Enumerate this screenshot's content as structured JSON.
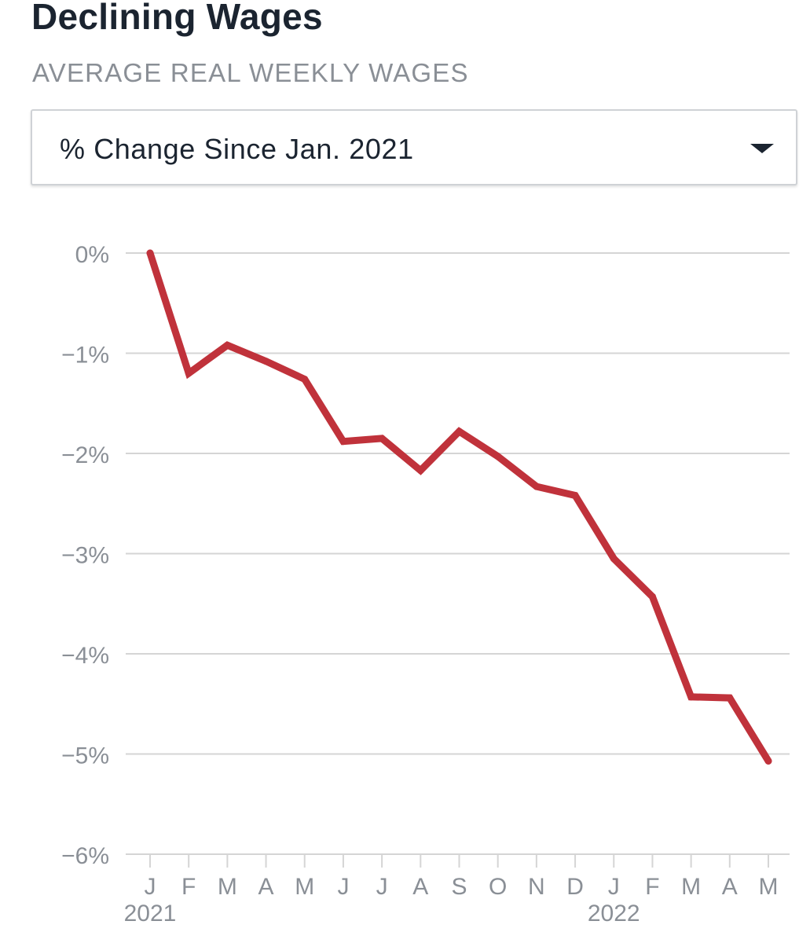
{
  "header": {
    "title": "Declining Wages",
    "subtitle": "AVERAGE REAL WEEKLY WAGES"
  },
  "selector": {
    "value": "% Change Since Jan. 2021",
    "icon": "caret-down-icon"
  },
  "colors": {
    "line": "#c0323b",
    "grid": "#d5d5d5",
    "tick_text": "#8a8f96"
  },
  "chart_data": {
    "type": "line",
    "title": "Declining Wages",
    "subtitle": "AVERAGE REAL WEEKLY WAGES",
    "xlabel": "",
    "ylabel": "",
    "categories": [
      "J",
      "F",
      "M",
      "A",
      "M",
      "J",
      "J",
      "A",
      "S",
      "O",
      "N",
      "D",
      "J",
      "F",
      "M",
      "A",
      "M"
    ],
    "year_labels": [
      {
        "label": "2021",
        "category_index": 0
      },
      {
        "label": "2022",
        "category_index": 12
      }
    ],
    "series": [
      {
        "values": [
          0.0,
          -1.2,
          -0.92,
          -1.08,
          -1.26,
          -1.88,
          -1.85,
          -2.17,
          -1.78,
          -2.03,
          -2.33,
          -2.42,
          -3.05,
          -3.43,
          -4.43,
          -4.44,
          -5.07
        ]
      }
    ],
    "yticks": [
      0,
      -1,
      -2,
      -3,
      -4,
      -5,
      -6
    ],
    "ytick_labels": [
      "0%",
      "−1%",
      "−2%",
      "−3%",
      "−4%",
      "−5%",
      "−6%"
    ],
    "ylim": [
      -6,
      0
    ],
    "grid": true,
    "legend": "none"
  }
}
